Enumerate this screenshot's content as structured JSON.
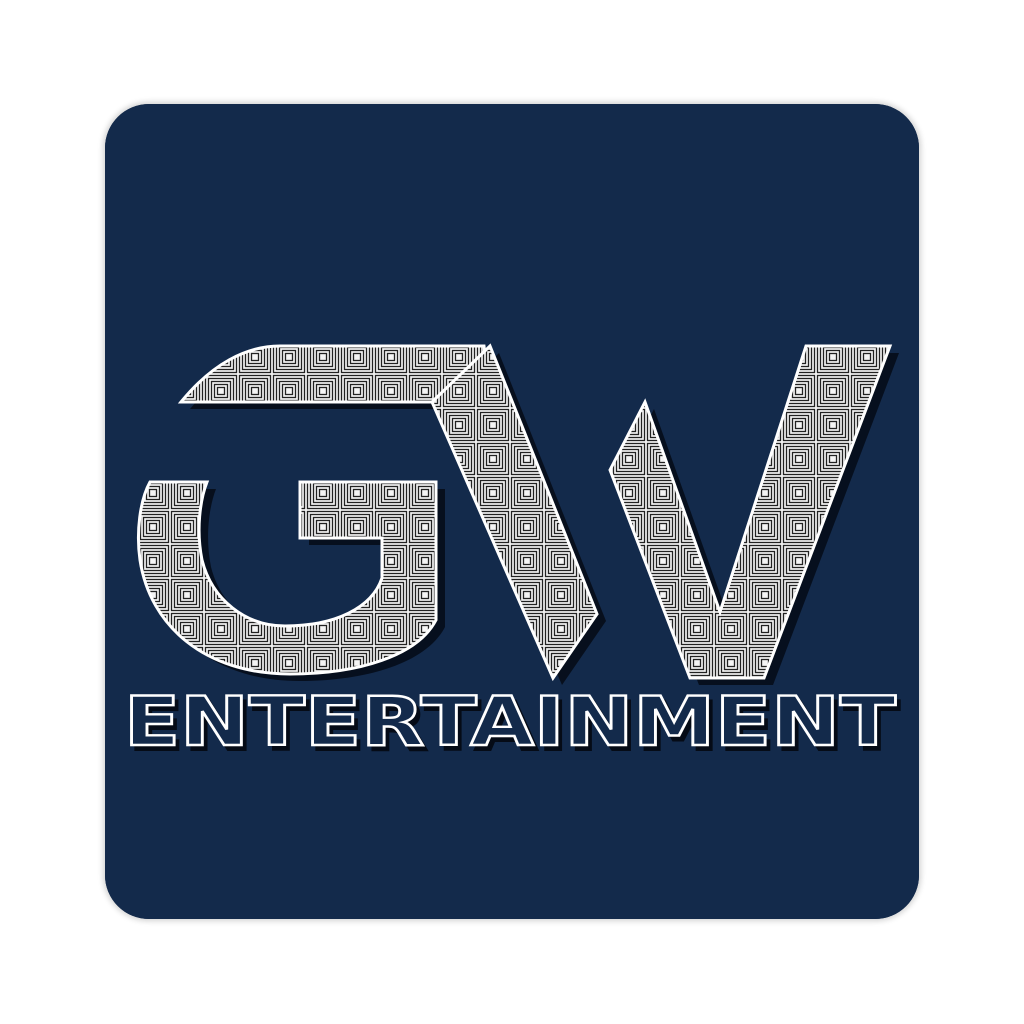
{
  "logo": {
    "monogram": "GW",
    "wordmark": "ENTERTAINMENT",
    "colors": {
      "page_background": "#ffffff",
      "tile_background": "#132a4b",
      "letter_fill_base": "#f4f4f4",
      "letter_pattern": "#222222",
      "letter_outline": "#ffffff",
      "drop_shadow": "#050b16"
    }
  }
}
